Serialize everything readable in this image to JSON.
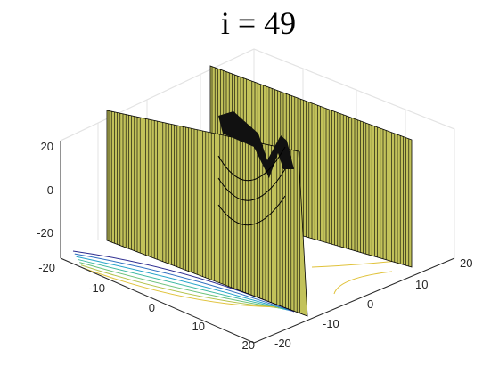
{
  "chart_data": {
    "type": "surface",
    "title": "i = 49",
    "xlabel": "",
    "ylabel": "",
    "zlabel": "",
    "xlim": [
      -20,
      20
    ],
    "ylim": [
      -20,
      20
    ],
    "zlim": [
      -20,
      20
    ],
    "x_ticks": [
      "-20",
      "-10",
      "0",
      "10",
      "20"
    ],
    "y_ticks": [
      "-20",
      "-10",
      "0",
      "10",
      "20"
    ],
    "z_ticks": [
      "20",
      "0",
      "-20"
    ],
    "grid": true,
    "surface_color": "#c2c25a",
    "edge_color": "#000000",
    "contour_colors": [
      "#2b2b8f",
      "#2f6fc0",
      "#22a3c9",
      "#3cb8a0",
      "#6cc27a",
      "#b3c24a",
      "#e0c23a"
    ],
    "description_of_shape": "saddle surface"
  }
}
